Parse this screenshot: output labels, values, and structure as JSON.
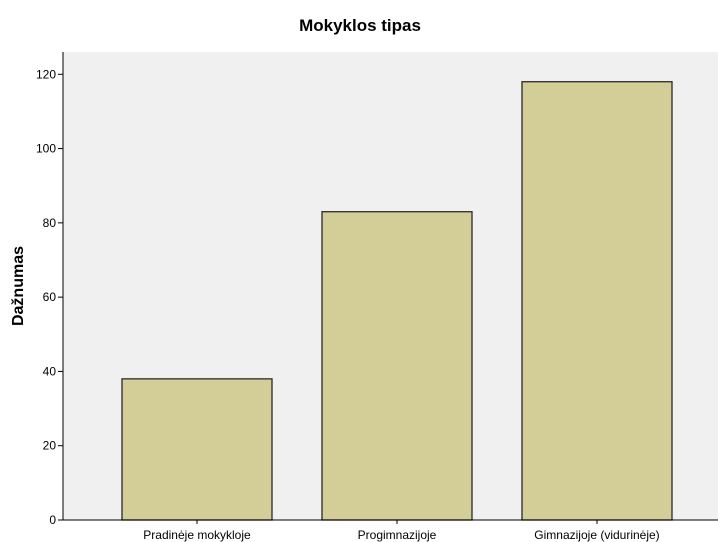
{
  "chart_data": {
    "type": "bar",
    "title": "Mokyklos tipas",
    "xlabel": "",
    "ylabel": "Dažnumas",
    "categories": [
      "Pradinėje mokykloje",
      "Progimnazijoje",
      "Gimnazijoje (vidurinėje)"
    ],
    "values": [
      38,
      83,
      118
    ],
    "ylim": [
      0,
      126
    ],
    "yticks": [
      0,
      20,
      40,
      60,
      80,
      100,
      120
    ],
    "grid": false,
    "legend": "none",
    "colors": {
      "bar_fill": "#d3cd98",
      "bar_stroke": "#2a2a2a",
      "plot_background": "#f0f0f0",
      "axis": "#000000"
    }
  }
}
